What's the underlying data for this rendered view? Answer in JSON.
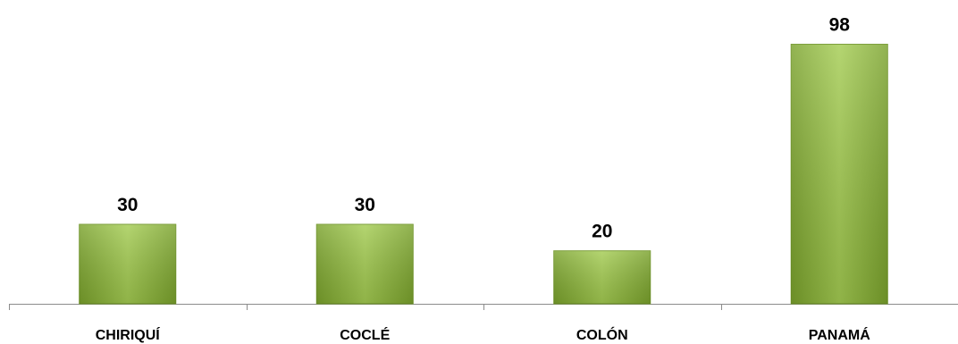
{
  "chart_data": {
    "type": "bar",
    "categories": [
      "CHIRIQUÍ",
      "COCLÉ",
      "COLÓN",
      "PANAMÁ"
    ],
    "values": [
      30,
      30,
      20,
      98
    ],
    "title": "",
    "xlabel": "",
    "ylabel": "",
    "ylim": [
      0,
      100
    ],
    "data_labels": true,
    "grid": false,
    "legend": "none",
    "bar_color": "#8db43a"
  }
}
